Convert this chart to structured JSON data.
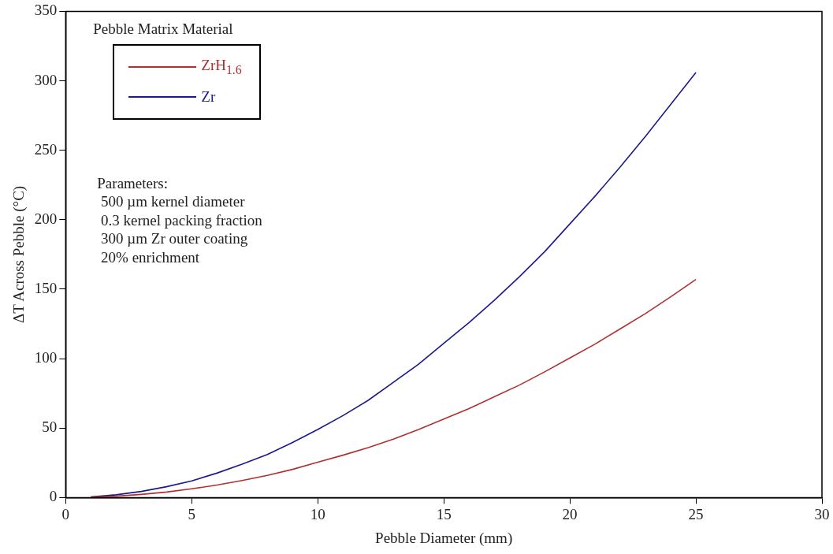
{
  "chart_data": {
    "type": "line",
    "xlabel": "Pebble Diameter (mm)",
    "ylabel": "ΔT Across Pebble (°C)",
    "legend_title": "Pebble Matrix Material",
    "x": [
      1,
      2,
      3,
      4,
      5,
      6,
      7,
      8,
      9,
      10,
      11,
      12,
      13,
      14,
      15,
      16,
      17,
      18,
      19,
      20,
      21,
      22,
      23,
      24,
      25
    ],
    "series": [
      {
        "name": "ZrH$_{1.6}$",
        "color": "#b03030",
        "values": [
          0.3,
          1,
          2.3,
          4,
          6.3,
          9,
          12.3,
          16,
          20.3,
          25.5,
          30.5,
          36,
          42,
          49,
          56.5,
          64,
          72.5,
          81,
          90.5,
          100.5,
          110.5,
          121.5,
          132.5,
          144.5,
          157
        ]
      },
      {
        "name": "Zr",
        "color": "#1a1a8c",
        "values": [
          0.5,
          2,
          4.4,
          7.8,
          12,
          17.6,
          24,
          31,
          39.7,
          49,
          59,
          70,
          83,
          96,
          111,
          126,
          142,
          159,
          177,
          197,
          217,
          238,
          260,
          283,
          306
        ]
      }
    ],
    "xlim": [
      0,
      30
    ],
    "xticks": [
      0,
      5,
      10,
      15,
      20,
      25,
      30
    ],
    "ylim": [
      0,
      350
    ],
    "yticks": [
      0,
      50,
      100,
      150,
      200,
      250,
      300,
      350
    ],
    "grid": false,
    "legend": "top left",
    "marker": "none",
    "line_style": "solid",
    "annotations": [
      "Parameters:",
      " 500 µm kernel diameter",
      " 0.3 kernel packing fraction",
      " 300 µm Zr outer coating",
      " 20% enrichment"
    ]
  }
}
